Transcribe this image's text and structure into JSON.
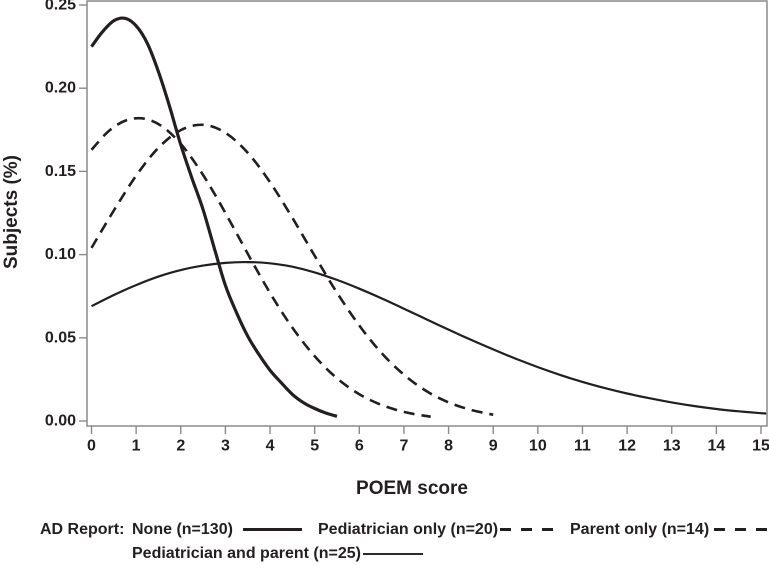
{
  "figure": {
    "background": "#ffffff",
    "frame_color": "#8a8a8a",
    "curve_color": "#231f20"
  },
  "chart_data": {
    "type": "line",
    "title": "",
    "xlabel": "POEM score",
    "ylabel": "Subjects (%)",
    "xlim": [
      0,
      15
    ],
    "ylim": [
      0,
      0.25
    ],
    "grid": false,
    "legend_position": "bottom",
    "legend_title": "AD Report:",
    "x_ticks": [
      {
        "v": 0,
        "label": "0"
      },
      {
        "v": 1,
        "label": "1"
      },
      {
        "v": 2,
        "label": "2"
      },
      {
        "v": 3,
        "label": "3"
      },
      {
        "v": 4,
        "label": "4"
      },
      {
        "v": 5,
        "label": "5"
      },
      {
        "v": 6,
        "label": "6"
      },
      {
        "v": 7,
        "label": "7"
      },
      {
        "v": 8,
        "label": "8"
      },
      {
        "v": 9,
        "label": "9"
      },
      {
        "v": 10,
        "label": "10"
      },
      {
        "v": 11,
        "label": "11"
      },
      {
        "v": 12,
        "label": "12"
      },
      {
        "v": 13,
        "label": "13"
      },
      {
        "v": 14,
        "label": "14"
      },
      {
        "v": 15,
        "label": "15"
      }
    ],
    "y_ticks": [
      {
        "v": 0.0,
        "label": "0.00"
      },
      {
        "v": 0.05,
        "label": "0.05"
      },
      {
        "v": 0.1,
        "label": "0.10"
      },
      {
        "v": 0.15,
        "label": "0.15"
      },
      {
        "v": 0.2,
        "label": "0.20"
      },
      {
        "v": 0.25,
        "label": "0.25"
      }
    ],
    "series": [
      {
        "name": "None (n=130)",
        "slug": "none",
        "style": "solid",
        "stroke_width": 3.2,
        "x": [
          0,
          0.25,
          0.5,
          0.75,
          1,
          1.25,
          1.5,
          1.75,
          2,
          2.25,
          2.5,
          2.75,
          3,
          3.25,
          3.5,
          3.75,
          4,
          4.25,
          4.5,
          4.75,
          5,
          5.25,
          5.5
        ],
        "y": [
          0.225,
          0.234,
          0.2405,
          0.242,
          0.2375,
          0.227,
          0.21,
          0.189,
          0.166,
          0.146,
          0.127,
          0.104,
          0.0815,
          0.065,
          0.051,
          0.04,
          0.0305,
          0.023,
          0.016,
          0.011,
          0.0075,
          0.0048,
          0.0028
        ]
      },
      {
        "name": "Pediatrician only (n=20)",
        "slug": "pediatrician-only",
        "style": "dashed",
        "stroke_width": 2.6,
        "x": [
          0,
          0.4,
          0.8,
          1.2,
          1.6,
          2,
          2.4,
          2.8,
          3.2,
          3.6,
          4,
          4.4,
          4.8,
          5.2,
          5.6,
          6,
          6.4,
          6.8,
          7.2,
          7.6
        ],
        "y": [
          0.163,
          0.1746,
          0.1809,
          0.1816,
          0.1767,
          0.1665,
          0.152,
          0.1345,
          0.1153,
          0.0957,
          0.077,
          0.06,
          0.0454,
          0.0332,
          0.0235,
          0.0161,
          0.0107,
          0.0069,
          0.0043,
          0.0026
        ]
      },
      {
        "name": "Parent only (n=14)",
        "slug": "parent-only",
        "style": "dashed",
        "stroke_width": 2.6,
        "x": [
          0,
          0.5,
          1,
          1.5,
          2,
          2.5,
          3,
          3.5,
          4,
          4.5,
          5,
          5.5,
          6,
          6.5,
          7,
          7.5,
          8,
          8.5,
          9
        ],
        "y": [
          0.104,
          0.1265,
          0.1474,
          0.1642,
          0.1748,
          0.178,
          0.1732,
          0.1612,
          0.1435,
          0.1221,
          0.0993,
          0.0771,
          0.0574,
          0.0408,
          0.0278,
          0.018,
          0.0112,
          0.0067,
          0.0038
        ]
      },
      {
        "name": "Pediatrician and parent (n=25)",
        "slug": "pediatrician-and-parent",
        "style": "solid",
        "stroke_width": 2.2,
        "x": [
          0,
          0.5,
          1,
          1.5,
          2,
          2.5,
          3,
          3.5,
          4,
          4.5,
          5,
          5.5,
          6,
          6.5,
          7,
          7.5,
          8,
          8.5,
          9,
          9.5,
          10,
          10.5,
          11,
          11.5,
          12,
          12.5,
          13,
          13.5,
          14,
          14.5,
          15,
          15.15
        ],
        "y": [
          0.069,
          0.0757,
          0.0817,
          0.0868,
          0.0907,
          0.0934,
          0.095,
          0.0955,
          0.0948,
          0.0927,
          0.0893,
          0.0848,
          0.0795,
          0.0737,
          0.0675,
          0.0612,
          0.0549,
          0.0488,
          0.043,
          0.0375,
          0.0324,
          0.0277,
          0.0235,
          0.0198,
          0.0165,
          0.0137,
          0.0112,
          0.009,
          0.0072,
          0.0058,
          0.0047,
          0.0044
        ]
      }
    ]
  }
}
